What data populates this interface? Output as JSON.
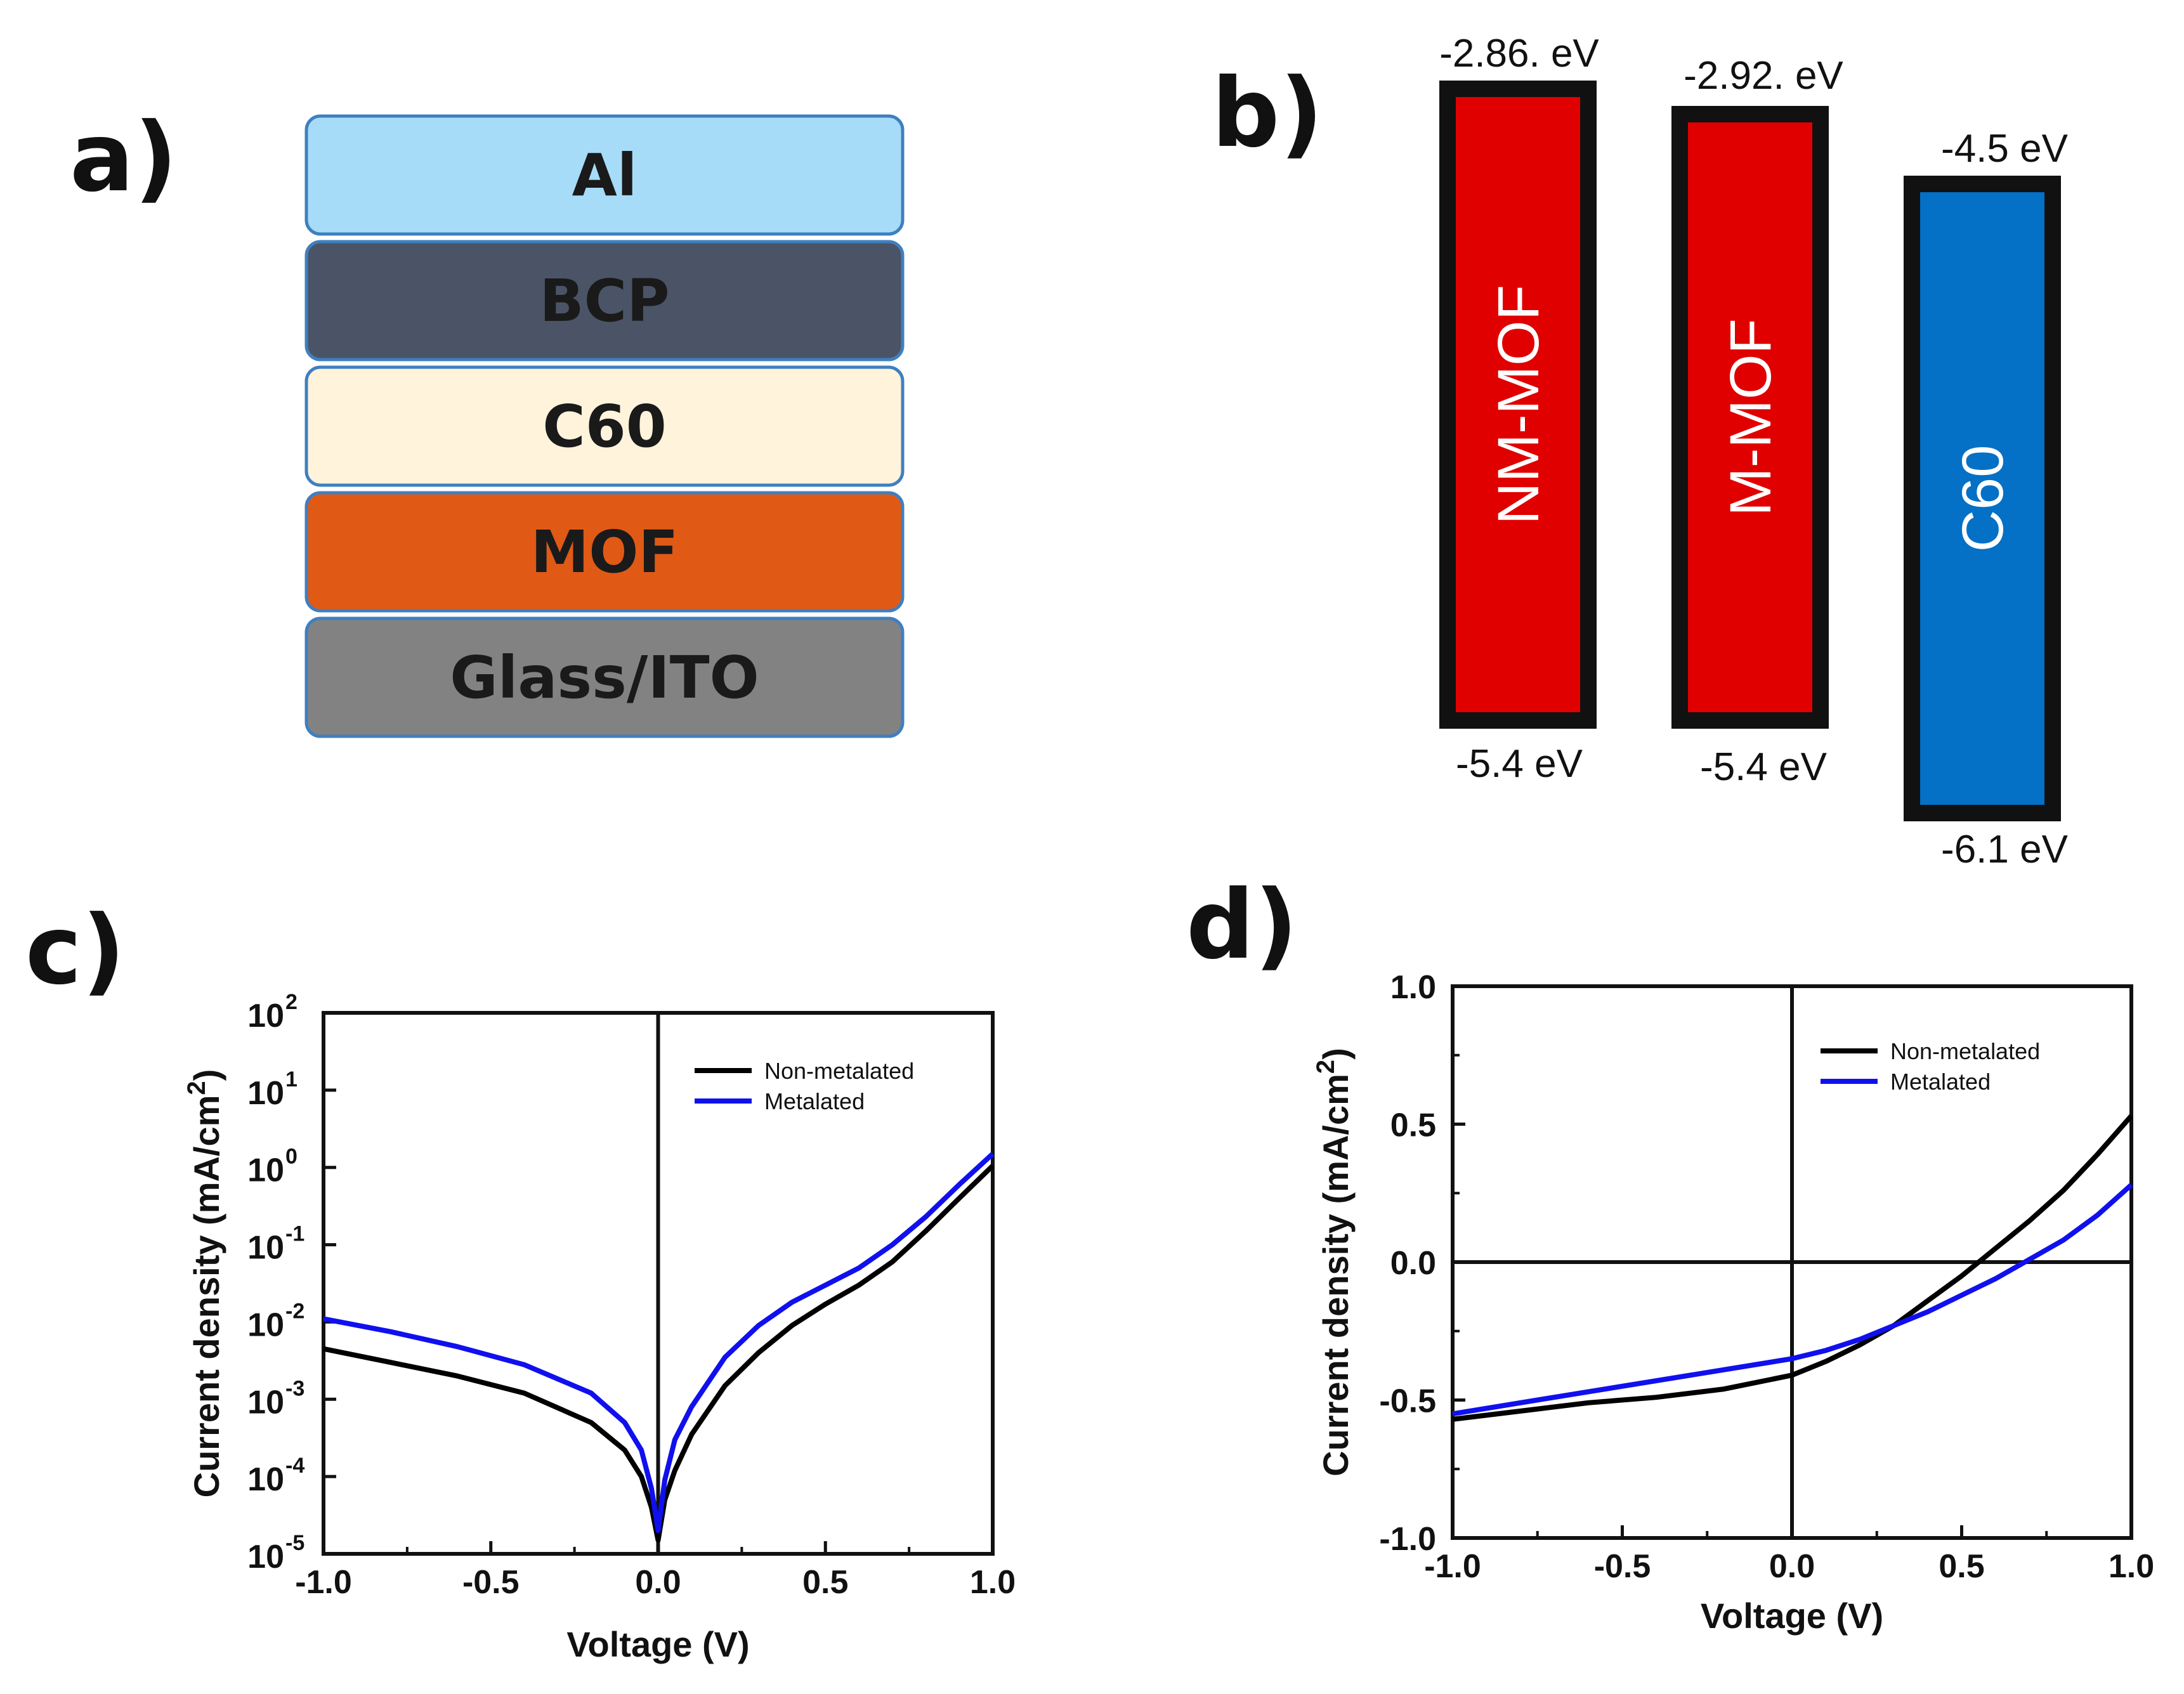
{
  "panels": {
    "a": {
      "letter": "a)"
    },
    "b": {
      "letter": "b)"
    },
    "c": {
      "letter": "c)"
    },
    "d": {
      "letter": "d)"
    }
  },
  "colors": {
    "al": "#a6dcf8",
    "bcp": "#4a5466",
    "c60_layer": "#fff3dc",
    "mof": "#e05a16",
    "glass": "#828282",
    "layer_border": "#3f7fc0",
    "red_band": "#e00000",
    "blue_band": "#0470c6",
    "non_metalated": "#000000",
    "metalated": "#1010ee"
  },
  "device_stack": {
    "layers": [
      {
        "label": "Al",
        "color": "#a6dcf8"
      },
      {
        "label": "BCP",
        "color": "#4a5466"
      },
      {
        "label": "C60",
        "color": "#fff3dc"
      },
      {
        "label": "MOF",
        "color": "#e05a16"
      },
      {
        "label": "Glass/ITO",
        "color": "#828282"
      }
    ]
  },
  "energy_diagram": {
    "bands": [
      {
        "label": "NM-MOF",
        "top": "-2.86. eV",
        "bottom": "-5.4 eV",
        "color": "#e00000",
        "lumo": -2.86,
        "homo": -5.4
      },
      {
        "label": "M-MOF",
        "top": "-2.92. eV",
        "bottom": "-5.4 eV",
        "color": "#e00000",
        "lumo": -2.92,
        "homo": -5.4
      },
      {
        "label": "C60",
        "top": "-4.5 eV",
        "bottom": "-6.1 eV",
        "color": "#0470c6",
        "lumo": -4.5,
        "homo": -6.1
      }
    ]
  },
  "chart_data": [
    {
      "panel": "c",
      "type": "line",
      "yscale": "log",
      "xlabel": "Voltage (V)",
      "ylabel": "Current density (mA/cm",
      "ylabel_sup": "2",
      "ylabel_end": ")",
      "xlim": [
        -1.0,
        1.0
      ],
      "ylim_exp": [
        -5,
        2
      ],
      "xticks": [
        "-1.0",
        "-0.5",
        "0.0",
        "0.5",
        "1.0"
      ],
      "yticks": [
        {
          "base": "10",
          "exp": "2"
        },
        {
          "base": "10",
          "exp": "1"
        },
        {
          "base": "10",
          "exp": "0"
        },
        {
          "base": "10",
          "exp": "-1"
        },
        {
          "base": "10",
          "exp": "-2"
        },
        {
          "base": "10",
          "exp": "-3"
        },
        {
          "base": "10",
          "exp": "-4"
        },
        {
          "base": "10",
          "exp": "-5"
        }
      ],
      "legend": [
        "Non-metalated",
        "Metalated"
      ],
      "series": [
        {
          "name": "Non-metalated",
          "color": "#000000",
          "points": [
            [
              -1.0,
              0.0045
            ],
            [
              -0.8,
              0.003
            ],
            [
              -0.6,
              0.002
            ],
            [
              -0.4,
              0.0012
            ],
            [
              -0.2,
              0.0005
            ],
            [
              -0.1,
              0.00022
            ],
            [
              -0.05,
              0.0001
            ],
            [
              -0.02,
              4e-05
            ],
            [
              0.0,
              1.5e-05
            ],
            [
              0.02,
              5e-05
            ],
            [
              0.05,
              0.00012
            ],
            [
              0.1,
              0.00035
            ],
            [
              0.2,
              0.0015
            ],
            [
              0.3,
              0.004
            ],
            [
              0.4,
              0.009
            ],
            [
              0.5,
              0.017
            ],
            [
              0.6,
              0.03
            ],
            [
              0.7,
              0.06
            ],
            [
              0.8,
              0.15
            ],
            [
              0.9,
              0.4
            ],
            [
              1.0,
              1.05
            ]
          ]
        },
        {
          "name": "Metalated",
          "color": "#1010ee",
          "points": [
            [
              -1.0,
              0.011
            ],
            [
              -0.8,
              0.0075
            ],
            [
              -0.6,
              0.0048
            ],
            [
              -0.4,
              0.0028
            ],
            [
              -0.2,
              0.0012
            ],
            [
              -0.1,
              0.0005
            ],
            [
              -0.05,
              0.00022
            ],
            [
              -0.02,
              7e-05
            ],
            [
              0.0,
              2e-05
            ],
            [
              0.02,
              9e-05
            ],
            [
              0.05,
              0.0003
            ],
            [
              0.1,
              0.0008
            ],
            [
              0.2,
              0.0035
            ],
            [
              0.3,
              0.009
            ],
            [
              0.4,
              0.018
            ],
            [
              0.5,
              0.03
            ],
            [
              0.6,
              0.05
            ],
            [
              0.7,
              0.1
            ],
            [
              0.8,
              0.23
            ],
            [
              0.9,
              0.6
            ],
            [
              1.0,
              1.5
            ]
          ]
        }
      ]
    },
    {
      "panel": "d",
      "type": "line",
      "xlabel": "Voltage (V)",
      "ylabel": "Current density (mA/cm",
      "ylabel_sup": "2",
      "ylabel_end": ")",
      "xlim": [
        -1.0,
        1.0
      ],
      "ylim": [
        -1.0,
        1.0
      ],
      "xticks": [
        "-1.0",
        "-0.5",
        "0.0",
        "0.5",
        "1.0"
      ],
      "yticks": [
        "1.0",
        "0.5",
        "0.0",
        "-0.5",
        "-1.0"
      ],
      "legend": [
        "Non-metalated",
        "Metalated"
      ],
      "series": [
        {
          "name": "Non-metalated",
          "color": "#000000",
          "points": [
            [
              -1.0,
              -0.57
            ],
            [
              -0.8,
              -0.54
            ],
            [
              -0.6,
              -0.51
            ],
            [
              -0.4,
              -0.49
            ],
            [
              -0.2,
              -0.46
            ],
            [
              0.0,
              -0.41
            ],
            [
              0.1,
              -0.36
            ],
            [
              0.2,
              -0.3
            ],
            [
              0.3,
              -0.23
            ],
            [
              0.4,
              -0.14
            ],
            [
              0.5,
              -0.05
            ],
            [
              0.6,
              0.05
            ],
            [
              0.7,
              0.15
            ],
            [
              0.8,
              0.26
            ],
            [
              0.9,
              0.39
            ],
            [
              1.0,
              0.53
            ]
          ]
        },
        {
          "name": "Metalated",
          "color": "#1010ee",
          "points": [
            [
              -1.0,
              -0.55
            ],
            [
              -0.8,
              -0.51
            ],
            [
              -0.6,
              -0.47
            ],
            [
              -0.4,
              -0.43
            ],
            [
              -0.2,
              -0.39
            ],
            [
              0.0,
              -0.35
            ],
            [
              0.1,
              -0.32
            ],
            [
              0.2,
              -0.28
            ],
            [
              0.3,
              -0.23
            ],
            [
              0.4,
              -0.18
            ],
            [
              0.5,
              -0.12
            ],
            [
              0.6,
              -0.06
            ],
            [
              0.7,
              0.01
            ],
            [
              0.8,
              0.08
            ],
            [
              0.9,
              0.17
            ],
            [
              1.0,
              0.28
            ]
          ]
        }
      ]
    }
  ]
}
